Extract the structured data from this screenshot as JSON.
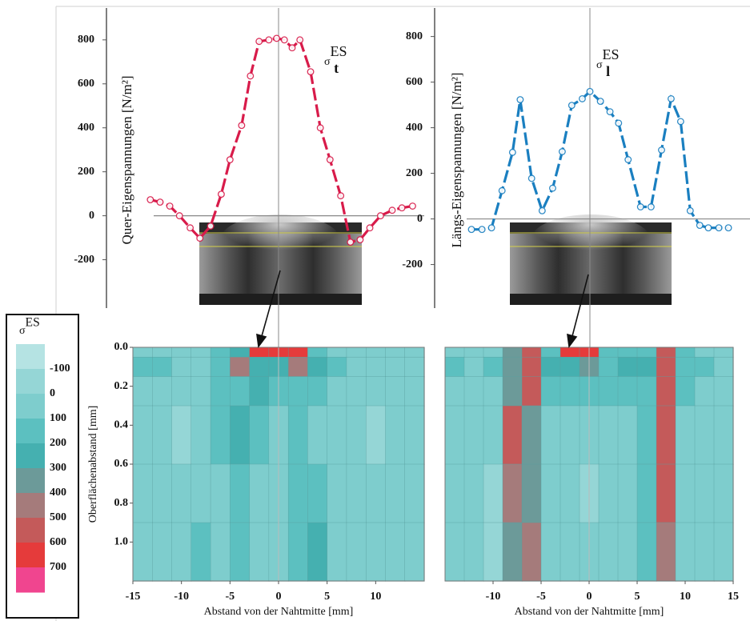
{
  "chart_data": [
    {
      "type": "line",
      "y_label": "Quer-Eigenspannungen [N/m²]",
      "annotation": {
        "symbol": "σ",
        "sub": "t",
        "sup": "ES"
      },
      "x": [
        -13.2,
        -12.2,
        -11.2,
        -10.2,
        -9.1,
        -8.1,
        -7.0,
        -5.9,
        -5.0,
        -3.8,
        -2.9,
        -2.0,
        -1.0,
        -0.2,
        0.6,
        1.4,
        2.2,
        3.3,
        4.3,
        5.3,
        6.4,
        7.4,
        8.4,
        9.4,
        10.5,
        11.7,
        12.7,
        13.8
      ],
      "series": [
        {
          "color": "#d81b4a",
          "values": [
            73,
            62,
            44,
            0,
            -55,
            -102,
            -47,
            98,
            255,
            411,
            636,
            793,
            800,
            807,
            800,
            764,
            800,
            655,
            400,
            255,
            91,
            -120,
            -109,
            -55,
            0,
            25,
            36,
            44
          ]
        }
      ],
      "xlim": [
        -15,
        15
      ],
      "ylim": [
        -420,
        945
      ],
      "yticks": [
        800,
        600,
        400,
        200,
        0,
        -200
      ]
    },
    {
      "type": "line",
      "y_label": "Längs-Eigenspannungen [N/m²]",
      "annotation": {
        "symbol": "σ",
        "sub": "l",
        "sup": "ES"
      },
      "x": [
        -12.4,
        -11.3,
        -10.3,
        -9.2,
        -8.1,
        -7.3,
        -6.1,
        -5.0,
        -3.9,
        -2.9,
        -1.9,
        -0.8,
        0,
        1.1,
        2.1,
        3.0,
        4.0,
        5.3,
        6.4,
        7.5,
        8.5,
        9.5,
        10.5,
        11.5,
        12.4,
        13.5,
        14.5
      ],
      "series": [
        {
          "color": "#1a7fc0",
          "values": [
            -46,
            -46,
            -39,
            124,
            292,
            523,
            178,
            36,
            135,
            295,
            498,
            527,
            559,
            516,
            470,
            420,
            260,
            53,
            53,
            302,
            527,
            427,
            36,
            -28,
            -39,
            -39,
            -39
          ]
        }
      ],
      "xlim": [
        -15,
        15
      ],
      "ylim": [
        -391,
        925
      ],
      "yticks": [
        800,
        600,
        400,
        200,
        0,
        -200
      ]
    },
    {
      "type": "contour",
      "y_label": "Oberflächenabstand [mm]",
      "x_label": "Abstand von der Nahtmitte [mm]",
      "xbins": [
        -15,
        -13,
        -11,
        -9,
        -7,
        -5,
        -3,
        -1,
        1,
        3,
        5,
        7,
        9,
        11,
        13,
        15
      ],
      "ybins": [
        0,
        0.05,
        0.15,
        0.3,
        0.6,
        0.9,
        1.2
      ],
      "z": [
        [
          50,
          50,
          50,
          50,
          100,
          250,
          650,
          600,
          650,
          150,
          50,
          50,
          50,
          50,
          50
        ],
        [
          100,
          100,
          50,
          50,
          150,
          400,
          200,
          250,
          450,
          200,
          100,
          50,
          50,
          50,
          50
        ],
        [
          50,
          50,
          50,
          50,
          100,
          150,
          250,
          150,
          150,
          100,
          50,
          50,
          50,
          50,
          50
        ],
        [
          50,
          50,
          -50,
          50,
          100,
          200,
          150,
          50,
          100,
          50,
          50,
          50,
          -50,
          50,
          50
        ],
        [
          50,
          50,
          50,
          50,
          50,
          100,
          50,
          50,
          150,
          100,
          50,
          50,
          50,
          50,
          50
        ],
        [
          50,
          50,
          50,
          100,
          50,
          100,
          50,
          50,
          100,
          250,
          50,
          50,
          50,
          50,
          50
        ]
      ],
      "xlim": [
        -15,
        15
      ],
      "ylim": [
        0,
        1.2
      ],
      "xticks": [
        -15,
        -10,
        -5,
        0,
        5,
        10
      ],
      "yticks": [
        {
          "value": 0,
          "label": "0.0"
        },
        0.2,
        0.4,
        0.6,
        0.8,
        {
          "value": 1,
          "label": "1.0"
        }
      ]
    },
    {
      "type": "contour",
      "x_label": "Abstand von der Nahtmitte [mm]",
      "xbins": [
        -15,
        -13,
        -11,
        -9,
        -7,
        -5,
        -3,
        -1,
        1,
        3,
        5,
        7,
        9,
        11,
        13,
        15
      ],
      "ybins": [
        0,
        0.05,
        0.15,
        0.3,
        0.6,
        0.9,
        1.2
      ],
      "z": [
        [
          50,
          50,
          50,
          300,
          500,
          150,
          600,
          650,
          150,
          100,
          150,
          500,
          100,
          50,
          50
        ],
        [
          100,
          50,
          100,
          300,
          550,
          200,
          200,
          300,
          150,
          200,
          200,
          550,
          150,
          100,
          50
        ],
        [
          50,
          50,
          50,
          300,
          500,
          100,
          150,
          150,
          100,
          100,
          150,
          550,
          100,
          50,
          50
        ],
        [
          50,
          50,
          50,
          500,
          300,
          50,
          50,
          50,
          50,
          50,
          100,
          550,
          50,
          50,
          50
        ],
        [
          50,
          50,
          -50,
          400,
          350,
          50,
          50,
          -50,
          50,
          50,
          100,
          500,
          50,
          50,
          50
        ],
        [
          50,
          50,
          -50,
          300,
          400,
          50,
          50,
          50,
          50,
          50,
          150,
          450,
          50,
          50,
          50
        ]
      ],
      "xlim": [
        -15,
        15
      ],
      "ylim": [
        0,
        1.2
      ],
      "xticks": [
        -10,
        -5,
        0,
        5,
        10,
        15
      ]
    },
    {
      "type": "colorbar",
      "title": {
        "symbol": "σ",
        "sup": "ES"
      },
      "levels": [
        -100,
        0,
        100,
        200,
        300,
        400,
        500,
        600,
        700
      ],
      "colors": [
        "#b5e3e3",
        "#95d6d6",
        "#7ecdcd",
        "#5cc0c0",
        "#45b0b0",
        "#6c9a99",
        "#a57b7b",
        "#c45a5a",
        "#e53b3b",
        "#f0458f"
      ]
    }
  ]
}
